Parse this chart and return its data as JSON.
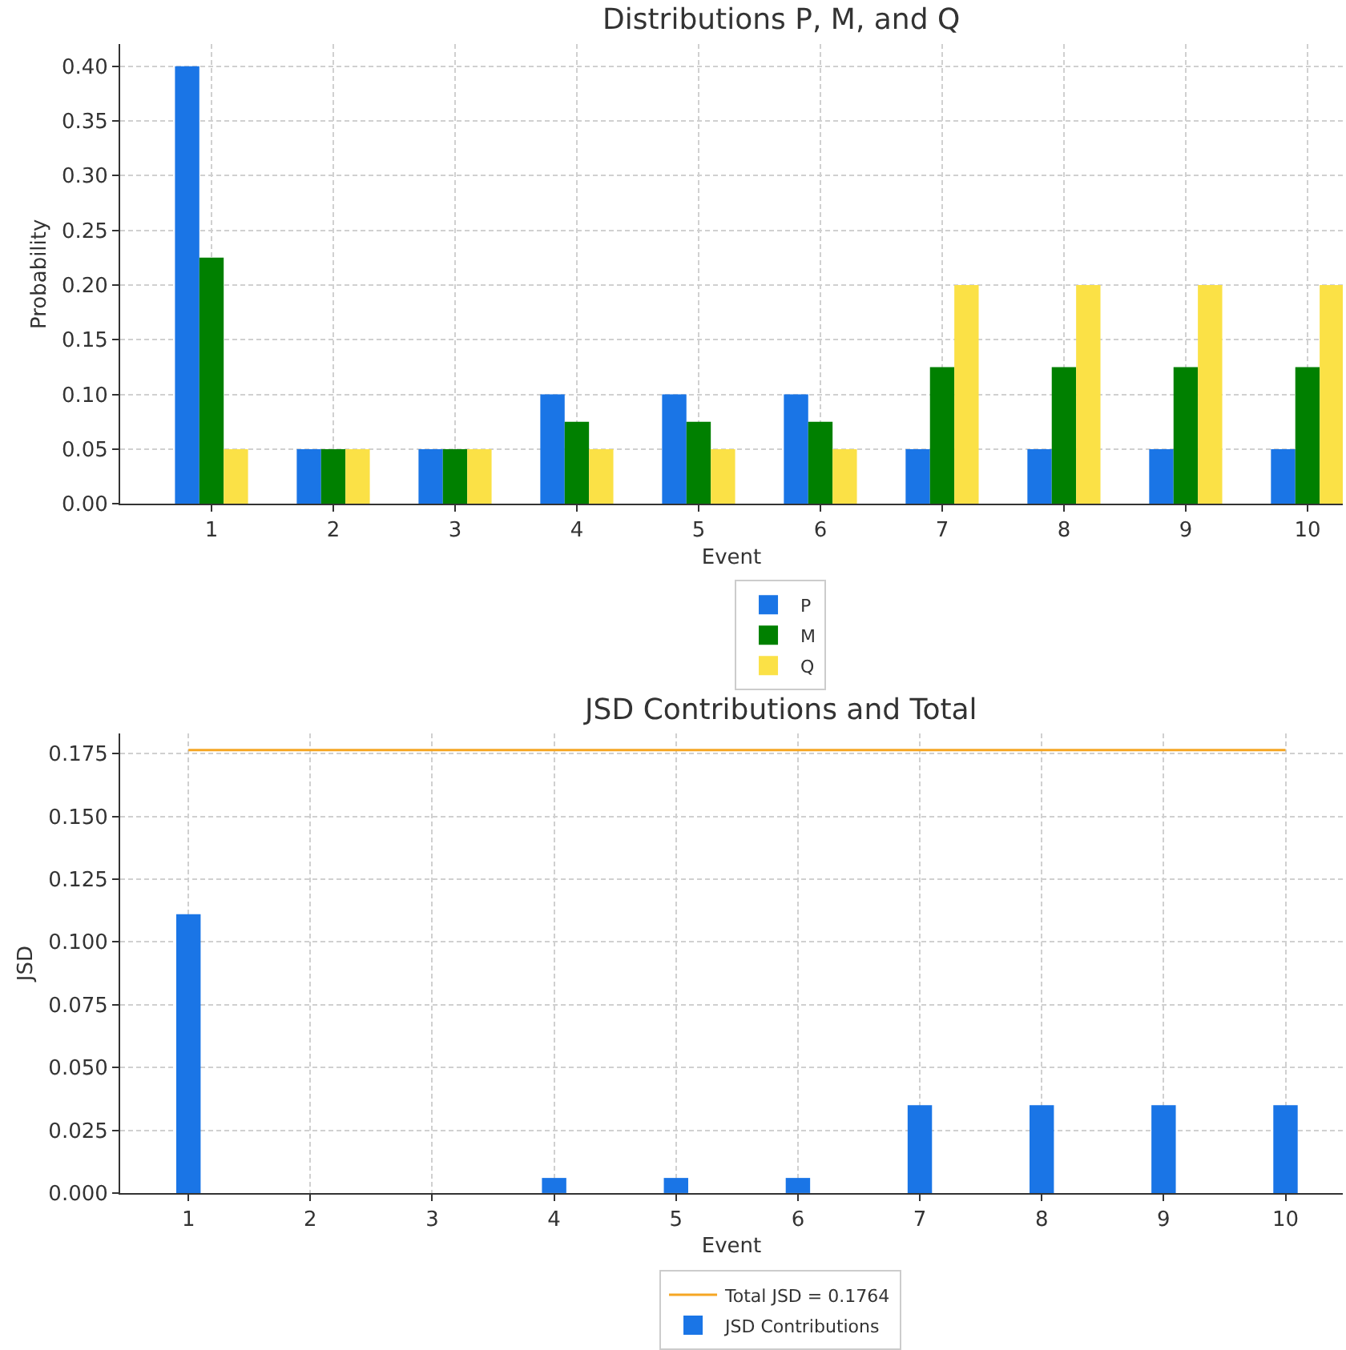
{
  "chart_data": [
    {
      "type": "bar",
      "title": "Distributions P, M, and Q",
      "xlabel": "Event",
      "ylabel": "Probability",
      "x": [
        1,
        2,
        3,
        4,
        5,
        6,
        7,
        8,
        9,
        10
      ],
      "xlim": [
        0.25,
        10.29
      ],
      "xticks": [
        1,
        2,
        3,
        4,
        5,
        6,
        7,
        8,
        9,
        10
      ],
      "ylim": [
        0,
        0.42
      ],
      "yticks": [
        {
          "value": 0,
          "label": "0.00"
        },
        {
          "value": 0.05,
          "label": "0.05"
        },
        {
          "value": 0.1,
          "label": "0.10"
        },
        {
          "value": 0.15,
          "label": "0.15"
        },
        {
          "value": 0.2,
          "label": "0.20"
        },
        {
          "value": 0.25,
          "label": "0.25"
        },
        {
          "value": 0.3,
          "label": "0.30"
        },
        {
          "value": 0.35,
          "label": "0.35"
        },
        {
          "value": 0.4,
          "label": "0.40"
        }
      ],
      "grid": true,
      "legend": "bottom",
      "series": [
        {
          "name": "P",
          "color": "#1a75e6",
          "values": [
            0.4,
            0.05,
            0.05,
            0.1,
            0.1,
            0.1,
            0.05,
            0.05,
            0.05,
            0.05
          ]
        },
        {
          "name": "M",
          "color": "#008000",
          "values": [
            0.225,
            0.05,
            0.05,
            0.075,
            0.075,
            0.075,
            0.125,
            0.125,
            0.125,
            0.125
          ]
        },
        {
          "name": "Q",
          "color": "#fbe146",
          "values": [
            0.05,
            0.05,
            0.05,
            0.05,
            0.05,
            0.05,
            0.2,
            0.2,
            0.2,
            0.2
          ]
        }
      ]
    },
    {
      "type": "bar",
      "title": "JSD Contributions and Total",
      "xlabel": "Event",
      "ylabel": "JSD",
      "x": [
        1,
        2,
        3,
        4,
        5,
        6,
        7,
        8,
        9,
        10
      ],
      "xlim": [
        0.44,
        10.47
      ],
      "xticks": [
        1,
        2,
        3,
        4,
        5,
        6,
        7,
        8,
        9,
        10
      ],
      "ylim": [
        0,
        0.183
      ],
      "yticks": [
        {
          "value": 0,
          "label": "0.000"
        },
        {
          "value": 0.025,
          "label": "0.025"
        },
        {
          "value": 0.05,
          "label": "0.050"
        },
        {
          "value": 0.075,
          "label": "0.075"
        },
        {
          "value": 0.1,
          "label": "0.100"
        },
        {
          "value": 0.125,
          "label": "0.125"
        },
        {
          "value": 0.15,
          "label": "0.150"
        },
        {
          "value": 0.175,
          "label": "0.175"
        }
      ],
      "grid": true,
      "legend": "bottom",
      "series": [
        {
          "name": "Total JSD = 0.1764",
          "type": "line",
          "color": "#f5a623",
          "x": [
            1,
            10
          ],
          "values": [
            0.1764,
            0.1764
          ]
        },
        {
          "name": "JSD Contributions",
          "color": "#1a75e6",
          "values": [
            0.111,
            0,
            0,
            0.006,
            0.006,
            0.006,
            0.035,
            0.035,
            0.035,
            0.035
          ]
        }
      ]
    }
  ]
}
